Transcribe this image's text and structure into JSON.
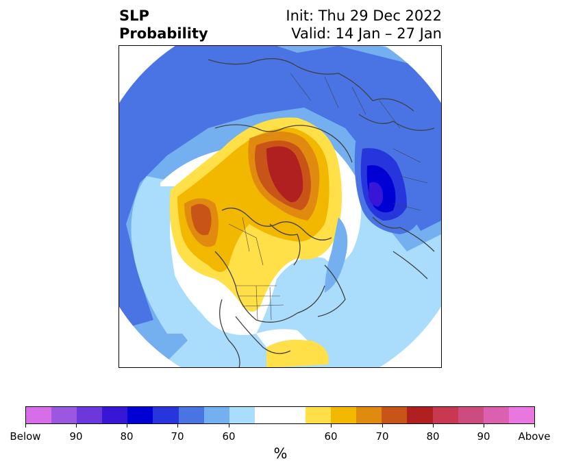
{
  "title": {
    "left_line1": "SLP",
    "left_line2": "Probability",
    "right_line1": "Init: Thu 29 Dec 2022",
    "right_line2": "Valid: 14 Jan – 27 Jan"
  },
  "map": {
    "projection": "north-polar-stereographic",
    "field": "sea level pressure probability",
    "below_colors": [
      "#d66ee8",
      "#9b57e0",
      "#6c38dc",
      "#3716d6",
      "#0000d4",
      "#2636dc",
      "#4a74e4",
      "#74b0f0",
      "#aadcfc"
    ],
    "neutral_color": "#ffffff",
    "above_colors": [
      "#ffe048",
      "#f2b800",
      "#e08a10",
      "#c85418",
      "#b02020",
      "#c83850",
      "#cc4c80",
      "#dc60b0",
      "#e878e0"
    ]
  },
  "colorbar": {
    "segments": [
      "#d66ee8",
      "#9b57e0",
      "#6c38dc",
      "#3716d6",
      "#0000d4",
      "#2636dc",
      "#4a74e4",
      "#74b0f0",
      "#aadcfc",
      "#ffffff",
      "#ffe048",
      "#f2b800",
      "#e08a10",
      "#c85418",
      "#b02020",
      "#c83850",
      "#cc4c80",
      "#dc60b0",
      "#e878e0"
    ],
    "tick_labels": [
      "Below",
      "90",
      "80",
      "70",
      "60",
      "60",
      "70",
      "80",
      "90",
      "Above"
    ],
    "unit": "%"
  }
}
